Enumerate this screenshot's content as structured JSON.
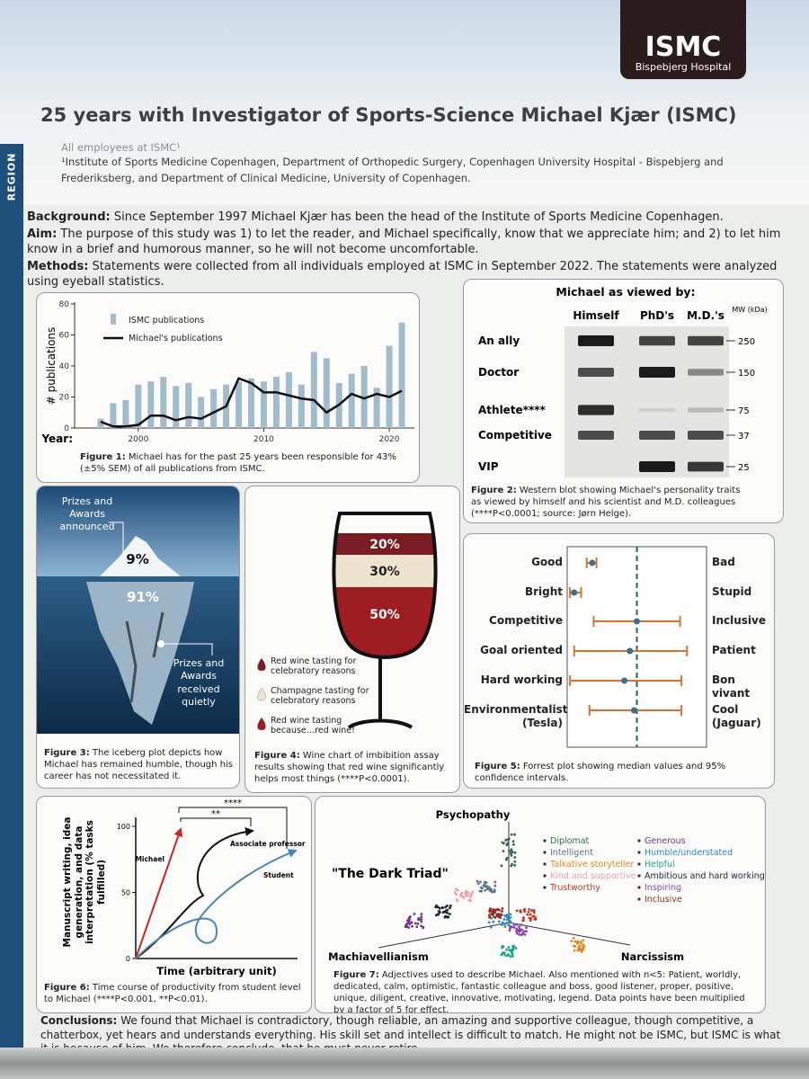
{
  "logo": {
    "name": "ISMC",
    "subtitle": "Bispebjerg Hospital"
  },
  "side_label": "REGION",
  "header": {
    "title": "25 years with Investigator of Sports-Science Michael Kjær (ISMC)",
    "authors": "All employees at ISMC¹",
    "affiliation": "¹Institute of Sports Medicine Copenhagen, Department of Orthopedic Surgery, Copenhagen University Hospital - Bispebjerg and Frederiksberg, and Department of Clinical Medicine, University of Copenhagen."
  },
  "intro": {
    "background": {
      "label": "Background:",
      "text": "Since September 1997 Michael Kjær has been the head of the Institute of Sports Medicine Copenhagen."
    },
    "aim": {
      "label": "Aim:",
      "text": "The purpose of this study was 1) to let the reader, and Michael specifically, know that we appreciate him; and 2) to let him know in a brief and humorous manner, so he will not become uncomfortable."
    },
    "methods": {
      "label": "Methods:",
      "text": "Statements were collected from all individuals employed at ISMC in September 2022. The statements were analyzed using eyeball statistics."
    }
  },
  "figure1": {
    "type": "bar",
    "x": [
      1997,
      1998,
      1999,
      2000,
      2001,
      2002,
      2003,
      2004,
      2005,
      2006,
      2007,
      2008,
      2009,
      2010,
      2011,
      2012,
      2013,
      2014,
      2015,
      2016,
      2017,
      2018,
      2019,
      2020,
      2021
    ],
    "series": [
      {
        "name": "ISMC publications",
        "color": "#a3bccb",
        "type": "bar",
        "values": [
          6,
          16,
          18,
          28,
          30,
          33,
          27,
          29,
          20,
          25,
          28,
          30,
          32,
          30,
          33,
          36,
          28,
          49,
          45,
          29,
          35,
          40,
          26,
          53,
          68
        ]
      },
      {
        "name": "Michael's publications",
        "color": "#111111",
        "type": "line",
        "values": [
          4,
          1,
          1,
          2,
          8,
          8,
          5,
          7,
          6,
          10,
          14,
          32,
          29,
          23,
          23,
          21,
          19,
          18,
          10,
          15,
          22,
          19,
          22,
          20,
          24
        ]
      }
    ],
    "ylabel": "# publications",
    "xlabel": "Year:",
    "xlim": [
      1996,
      2022
    ],
    "xticks": [
      2000,
      2010,
      2020
    ],
    "ylim": [
      0,
      80
    ],
    "yticks": [
      0,
      20,
      40,
      60,
      80
    ],
    "caption": {
      "label": "Figure 1:",
      "text": "Michael has for the past 25 years been responsible for 43% (±5% SEM) of all publications from ISMC."
    }
  },
  "figure2": {
    "title": "Michael as viewed by:",
    "columns": [
      "Himself",
      "PhD's",
      "M.D.'s"
    ],
    "mw_label": "MW (kDa)",
    "rows": [
      "An ally",
      "Doctor",
      "Athlete****",
      "Competitive",
      "VIP"
    ],
    "markers": [
      250,
      150,
      75,
      37,
      25
    ],
    "band_intensity": [
      [
        1,
        0.8,
        0.8
      ],
      [
        0.75,
        1,
        0.45
      ],
      [
        0.9,
        0.1,
        0.2
      ],
      [
        0.75,
        0.75,
        0.75
      ],
      [
        0,
        1,
        0.85
      ]
    ],
    "caption": {
      "label": "Figure 2:",
      "text": "Western blot showing Michael's personality traits as viewed by himself and his scientist and M.D. colleagues (****P<0.0001; source: Jørn Helge)."
    }
  },
  "figure3": {
    "values": [
      9,
      91
    ],
    "value_labels": [
      "9%",
      "91%"
    ],
    "labels": [
      "Prizes and Awards announced",
      "Prizes and Awards received quietly"
    ],
    "caption": {
      "label": "Figure 3:",
      "text": "The iceberg plot depicts how Michael has remained humble, though his career has not necessitated it."
    }
  },
  "figure4": {
    "type": "stacked",
    "values": [
      20,
      30,
      50
    ],
    "value_labels": [
      "20%",
      "30%",
      "50%"
    ],
    "colors": [
      "#7a1c22",
      "#ede3cf",
      "#9e1d22"
    ],
    "legend": [
      "Red wine tasting for celebratory reasons",
      "Champagne tasting for celebratory reasons",
      "Red wine tasting because…red wine!"
    ],
    "caption": {
      "label": "Figure 4:",
      "text": "Wine chart of imbibition assay results showing that red wine significantly helps most things (****P<0.0001)."
    }
  },
  "figure5": {
    "type": "forest",
    "xlim": [
      0,
      100
    ],
    "reference": 50,
    "rows": [
      {
        "left": "Good",
        "right": "Bad",
        "median": 18,
        "ci": [
          14,
          21
        ]
      },
      {
        "left": "Bright",
        "right": "Stupid",
        "median": 5,
        "ci": [
          2,
          10
        ]
      },
      {
        "left": "Competitive",
        "right": "Inclusive",
        "median": 50,
        "ci": [
          19,
          81
        ]
      },
      {
        "left": "Goal oriented",
        "right": "Patient",
        "median": 45,
        "ci": [
          5,
          86
        ]
      },
      {
        "left": "Hard working",
        "right": "Bon vivant",
        "median": 41,
        "ci": [
          2,
          82
        ]
      },
      {
        "left": "Environmentalist (Tesla)",
        "right": "Cool (Jaguar)",
        "median": 48,
        "ci": [
          16,
          82
        ]
      }
    ],
    "caption": {
      "label": "Figure 5:",
      "text": "Forrest plot showing median values and 95% confidence intervals."
    }
  },
  "figure6": {
    "ylabel": "Manuscript writing, idea generation, and data interpretation (% tasks fulfilled)",
    "xlabel": "Time (arbitrary unit)",
    "ylim": [
      0,
      100
    ],
    "yticks": [
      0,
      50,
      100
    ],
    "curves": [
      "Michael",
      "Associate professor",
      "Student"
    ],
    "significance": [
      "****",
      "**"
    ],
    "caption": {
      "label": "Figure 6:",
      "text": "Time course of productivity from student level to Michael (****P<0.001, **P<0.01)."
    }
  },
  "figure7": {
    "title": "\"The Dark Triad\"",
    "axes": [
      "Psychopathy",
      "Machiavellianism",
      "Narcissism"
    ],
    "legend_left": [
      {
        "name": "Diplomat",
        "color": "#2f6b45"
      },
      {
        "name": "Intelligent",
        "color": "#5d7286"
      },
      {
        "name": "Talkative storyteller",
        "color": "#d98b2b"
      },
      {
        "name": "Kind and supportive",
        "color": "#e79fb0"
      },
      {
        "name": "Trustworthy",
        "color": "#c0392b"
      }
    ],
    "legend_right": [
      {
        "name": "Generous",
        "color": "#6c3483"
      },
      {
        "name": "Humble/understated",
        "color": "#2e86c1"
      },
      {
        "name": "Helpful",
        "color": "#17a589"
      },
      {
        "name": "Ambitious and hard working",
        "color": "#1b2631"
      },
      {
        "name": "Inspiring",
        "color": "#8e44ad"
      },
      {
        "name": "Inclusive",
        "color": "#922b21"
      }
    ],
    "caption": {
      "label": "Figure 7:",
      "text": "Adjectives used to describe Michael. Also mentioned with n<5: Patient, worldly, dedicated, calm, optimistic, fantastic colleague and boss, good listener, proper, positive, unique, diligent, creative, innovative, motivating, legend. Data points have been multiplied by a factor of 5 for effect."
    }
  },
  "conclusions": {
    "label": "Conclusions:",
    "text": "We found that Michael is contradictory, though reliable, an amazing and supportive colleague, though competitive, a chatterbox, yet hears and understands everything. His skill set and intellect is difficult to match. He might not be ISMC, but ISMC is what it is because of him. We therefore conclude, that he must never retire."
  }
}
